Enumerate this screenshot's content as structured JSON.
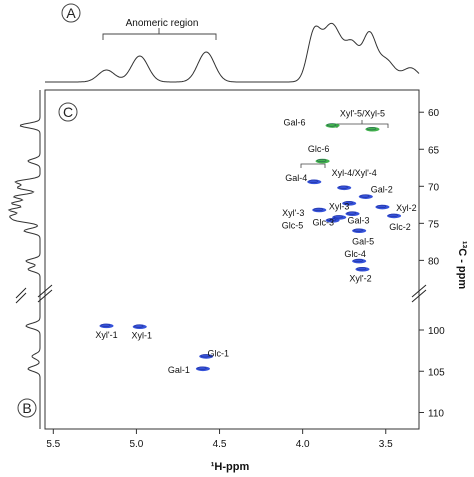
{
  "panels": {
    "a": "A",
    "b": "B",
    "c": "C"
  },
  "anomeric_label": "Anomeric region",
  "chart_data": {
    "type": "scatter",
    "xlabel": "¹H-ppm",
    "ylabel": "¹³C - ppm",
    "xlim": [
      5.55,
      3.3
    ],
    "xticks": [
      5.5,
      5.0,
      4.5,
      4.0,
      3.5
    ],
    "ylim_upper": [
      57,
      84
    ],
    "ylim_lower": [
      96,
      112
    ],
    "yticks_upper": [
      60,
      65,
      70,
      75,
      80
    ],
    "yticks_lower": [
      100,
      105,
      110
    ],
    "axis_break": true,
    "series": [
      {
        "color": "#1f3fd6",
        "points": [
          {
            "label": "Xyl'-1",
            "x": 5.18,
            "y": 99.5
          },
          {
            "label": "Xyl-1",
            "x": 4.98,
            "y": 99.6
          },
          {
            "label": "Glc-1",
            "x": 4.58,
            "y": 103.2
          },
          {
            "label": "Gal-1",
            "x": 4.6,
            "y": 104.7
          },
          {
            "label": "Gal-4",
            "x": 3.93,
            "y": 69.4
          },
          {
            "label": "Xyl-4/Xyl'-4",
            "x": 3.75,
            "y": 70.2
          },
          {
            "label": "Gal-2",
            "x": 3.62,
            "y": 71.4
          },
          {
            "label": "Xyl-3",
            "x": 3.72,
            "y": 72.3
          },
          {
            "label": "Xyl-2",
            "x": 3.52,
            "y": 72.8
          },
          {
            "label": "Xyl'-3",
            "x": 3.9,
            "y": 73.2
          },
          {
            "label": "Gal-3",
            "x": 3.7,
            "y": 73.7
          },
          {
            "label": "Glc-3",
            "x": 3.78,
            "y": 74.2
          },
          {
            "label": "Glc-2",
            "x": 3.45,
            "y": 74.0
          },
          {
            "label": "Glc-5",
            "x": 3.82,
            "y": 74.6
          },
          {
            "label": "Gal-5",
            "x": 3.66,
            "y": 76.0
          },
          {
            "label": "Glc-4",
            "x": 3.66,
            "y": 80.1
          },
          {
            "label": "Xyl'-2",
            "x": 3.64,
            "y": 81.2
          }
        ]
      },
      {
        "color": "#2eaa3a",
        "points": [
          {
            "label": "Gal-6",
            "x": 3.82,
            "y": 61.8
          },
          {
            "label": "Xyl'-5/Xyl-5",
            "x": 3.58,
            "y": 62.3
          },
          {
            "label": "Glc-6",
            "x": 3.88,
            "y": 66.6
          }
        ]
      }
    ]
  }
}
